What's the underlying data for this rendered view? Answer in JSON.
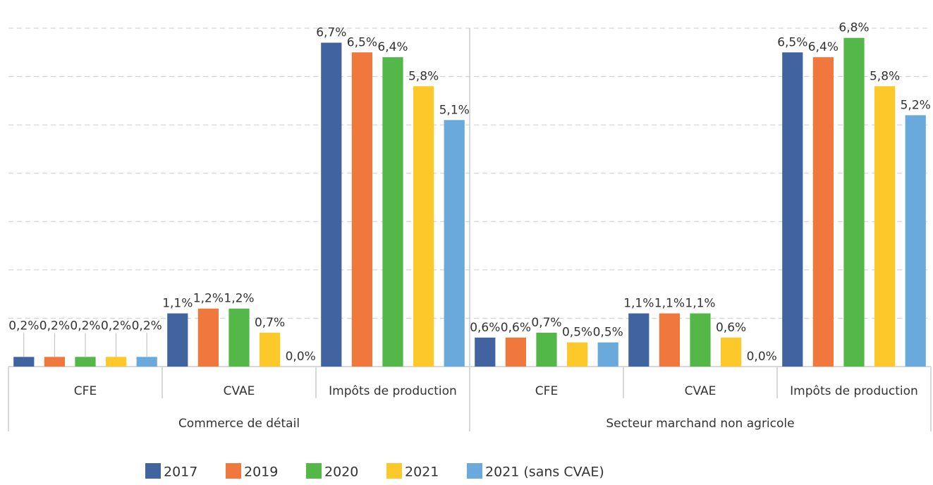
{
  "chart_data": {
    "type": "bar",
    "categories": [
      "CFE",
      "CVAE",
      "Impôts de production",
      "CFE",
      "CVAE",
      "Impôts de production"
    ],
    "category_groups": [
      "Commerce de détail",
      "Secteur marchand non agricole"
    ],
    "series": [
      {
        "name": "2017",
        "color": "#4164a0",
        "values": [
          0.2,
          1.1,
          6.7,
          0.6,
          1.1,
          6.5
        ],
        "value_labels": [
          "0,2%",
          "1,1%",
          "6,7%",
          "0,6%",
          "1,1%",
          "6,5%"
        ]
      },
      {
        "name": "2019",
        "color": "#f0783c",
        "values": [
          0.2,
          1.2,
          6.5,
          0.6,
          1.1,
          6.4
        ],
        "value_labels": [
          "0,2%",
          "1,2%",
          "6,5%",
          "0,6%",
          "1,1%",
          "6,4%"
        ]
      },
      {
        "name": "2020",
        "color": "#54b848",
        "values": [
          0.2,
          1.2,
          6.4,
          0.7,
          1.1,
          6.8
        ],
        "value_labels": [
          "0,2%",
          "1,2%",
          "6,4%",
          "0,7%",
          "1,1%",
          "6,8%"
        ]
      },
      {
        "name": "2021",
        "color": "#fdc82a",
        "values": [
          0.2,
          0.7,
          5.8,
          0.5,
          0.6,
          5.8
        ],
        "value_labels": [
          "0,2%",
          "0,7%",
          "5,8%",
          "0,5%",
          "0,6%",
          "5,8%"
        ]
      },
      {
        "name": "2021 (sans CVAE)",
        "color": "#6aa9dc",
        "values": [
          0.2,
          0.0,
          5.1,
          0.5,
          0.0,
          5.2
        ],
        "value_labels": [
          "0,2%",
          "0,0%",
          "5,1%",
          "0,5%",
          "0,0%",
          "5,2%"
        ]
      }
    ],
    "ylim": [
      0,
      7
    ],
    "yticks": [
      0,
      1,
      2,
      3,
      4,
      5,
      6,
      7
    ],
    "grid": true,
    "legend": "bottom"
  }
}
